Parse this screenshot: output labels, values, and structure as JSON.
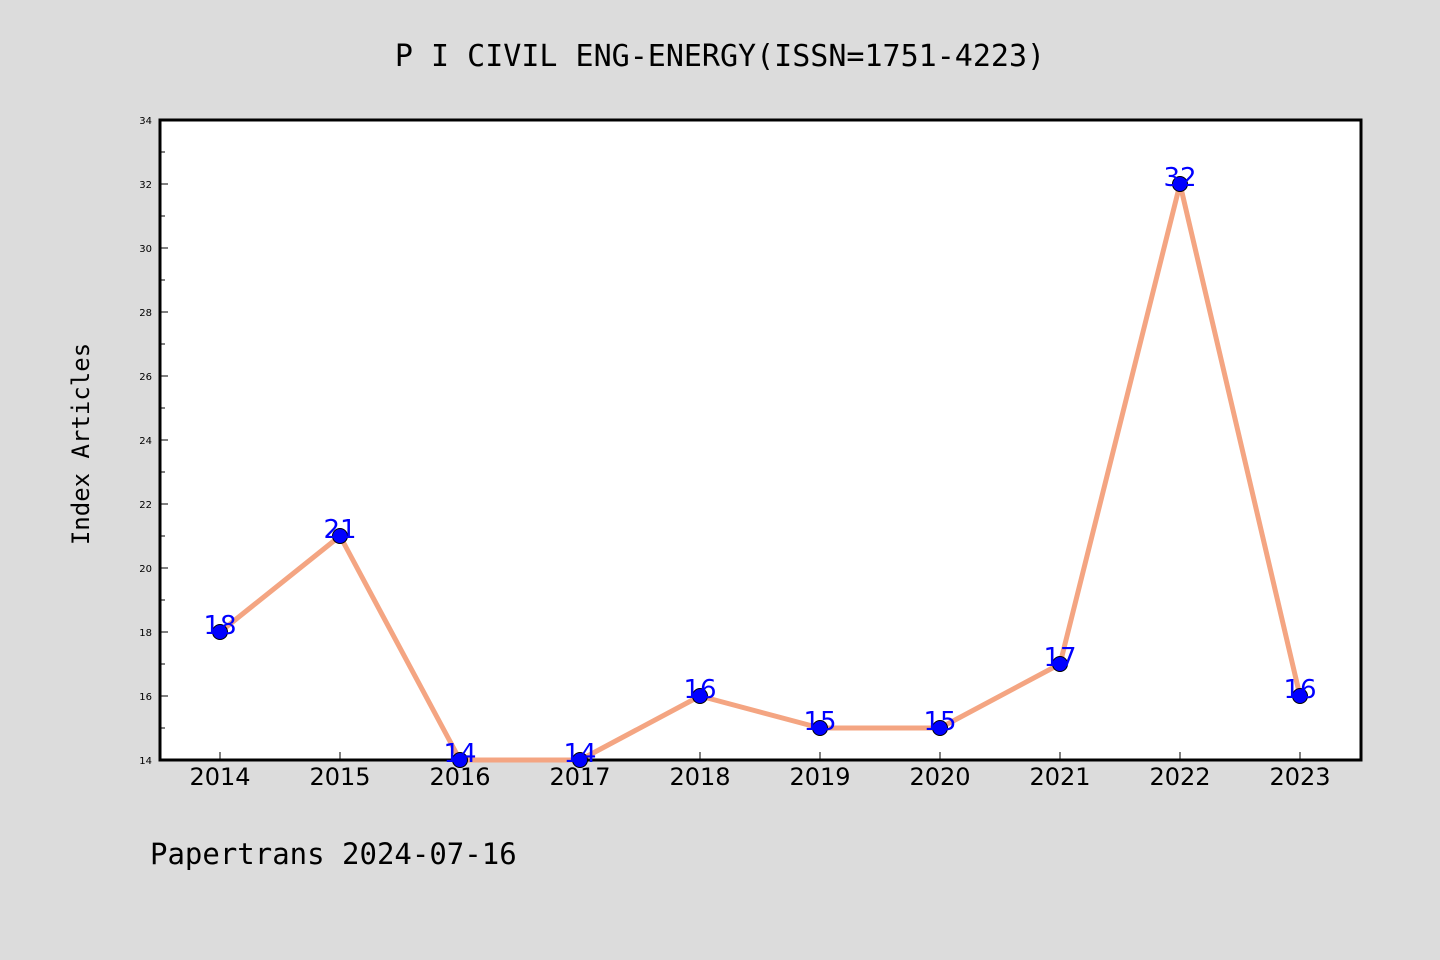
{
  "chart_data": {
    "type": "line",
    "title": "P I CIVIL ENG-ENERGY(ISSN=1751-4223)",
    "xlabel": "",
    "ylabel": "Index Articles",
    "footer": "Papertrans 2024-07-16",
    "categories": [
      "2014",
      "2015",
      "2016",
      "2017",
      "2018",
      "2019",
      "2020",
      "2021",
      "2022",
      "2023"
    ],
    "series": [
      {
        "values": [
          18,
          21,
          14,
          14,
          16,
          15,
          15,
          17,
          32,
          16
        ]
      }
    ],
    "data_labels": [
      "18",
      "21",
      "14",
      "14",
      "16",
      "15",
      "15",
      "17",
      "32",
      "16"
    ],
    "ylim": [
      14,
      34
    ],
    "yticks": [
      "14",
      "16",
      "18",
      "20",
      "22",
      "24",
      "26",
      "28",
      "30",
      "32",
      "34"
    ],
    "grid": false,
    "colors": {
      "line": "#f4a582",
      "marker": "#0000ff",
      "data_label": "#0000ff",
      "background": "#dcdcdc",
      "plot_background": "#ffffff"
    }
  }
}
